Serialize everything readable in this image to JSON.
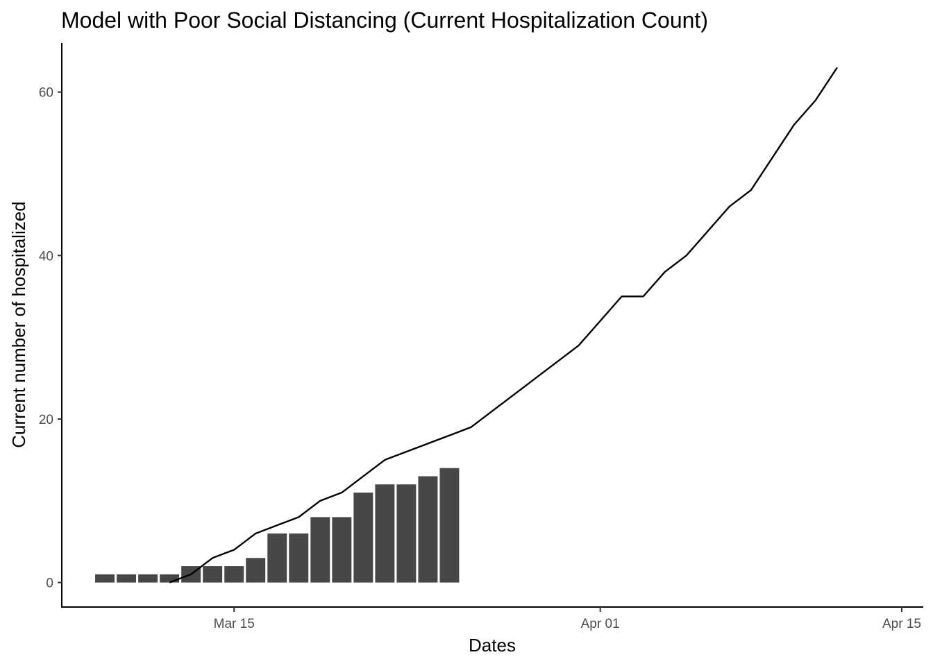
{
  "chart_data": {
    "type": "bar+line",
    "title": "Model with Poor Social Distancing (Current Hospitalization Count)",
    "xlabel": "Dates",
    "ylabel": "Current number of hospitalized",
    "ylim": [
      -3,
      66
    ],
    "xlim": [
      "2020-03-07",
      "2020-04-16"
    ],
    "y_ticks": [
      0,
      20,
      40,
      60
    ],
    "x_ticks": [
      {
        "date": "2020-03-15",
        "label": "Mar 15"
      },
      {
        "date": "2020-04-01",
        "label": "Apr 01"
      },
      {
        "date": "2020-04-15",
        "label": "Apr 15"
      }
    ],
    "grid": false,
    "legend": "none",
    "bar_series": {
      "color": "#474747",
      "points": [
        {
          "date": "2020-03-09",
          "value": 1
        },
        {
          "date": "2020-03-10",
          "value": 1
        },
        {
          "date": "2020-03-11",
          "value": 1
        },
        {
          "date": "2020-03-12",
          "value": 1
        },
        {
          "date": "2020-03-13",
          "value": 2
        },
        {
          "date": "2020-03-14",
          "value": 2
        },
        {
          "date": "2020-03-15",
          "value": 2
        },
        {
          "date": "2020-03-16",
          "value": 3
        },
        {
          "date": "2020-03-17",
          "value": 6
        },
        {
          "date": "2020-03-18",
          "value": 6
        },
        {
          "date": "2020-03-19",
          "value": 8
        },
        {
          "date": "2020-03-20",
          "value": 8
        },
        {
          "date": "2020-03-21",
          "value": 11
        },
        {
          "date": "2020-03-22",
          "value": 12
        },
        {
          "date": "2020-03-23",
          "value": 12
        },
        {
          "date": "2020-03-24",
          "value": 13
        },
        {
          "date": "2020-03-25",
          "value": 14
        }
      ]
    },
    "line_series": {
      "color": "#000000",
      "points": [
        {
          "date": "2020-03-12",
          "value": 0
        },
        {
          "date": "2020-03-13",
          "value": 1
        },
        {
          "date": "2020-03-14",
          "value": 3
        },
        {
          "date": "2020-03-15",
          "value": 4
        },
        {
          "date": "2020-03-16",
          "value": 6
        },
        {
          "date": "2020-03-17",
          "value": 7
        },
        {
          "date": "2020-03-18",
          "value": 8
        },
        {
          "date": "2020-03-19",
          "value": 10
        },
        {
          "date": "2020-03-20",
          "value": 11
        },
        {
          "date": "2020-03-21",
          "value": 13
        },
        {
          "date": "2020-03-22",
          "value": 15
        },
        {
          "date": "2020-03-23",
          "value": 16
        },
        {
          "date": "2020-03-24",
          "value": 17
        },
        {
          "date": "2020-03-25",
          "value": 18
        },
        {
          "date": "2020-03-26",
          "value": 19
        },
        {
          "date": "2020-03-27",
          "value": 21
        },
        {
          "date": "2020-03-28",
          "value": 23
        },
        {
          "date": "2020-03-29",
          "value": 25
        },
        {
          "date": "2020-03-30",
          "value": 27
        },
        {
          "date": "2020-03-31",
          "value": 29
        },
        {
          "date": "2020-04-01",
          "value": 32
        },
        {
          "date": "2020-04-02",
          "value": 35
        },
        {
          "date": "2020-04-03",
          "value": 35
        },
        {
          "date": "2020-04-04",
          "value": 38
        },
        {
          "date": "2020-04-05",
          "value": 40
        },
        {
          "date": "2020-04-06",
          "value": 43
        },
        {
          "date": "2020-04-07",
          "value": 46
        },
        {
          "date": "2020-04-08",
          "value": 48
        },
        {
          "date": "2020-04-09",
          "value": 52
        },
        {
          "date": "2020-04-10",
          "value": 56
        },
        {
          "date": "2020-04-11",
          "value": 59
        },
        {
          "date": "2020-04-12",
          "value": 63
        }
      ]
    }
  }
}
